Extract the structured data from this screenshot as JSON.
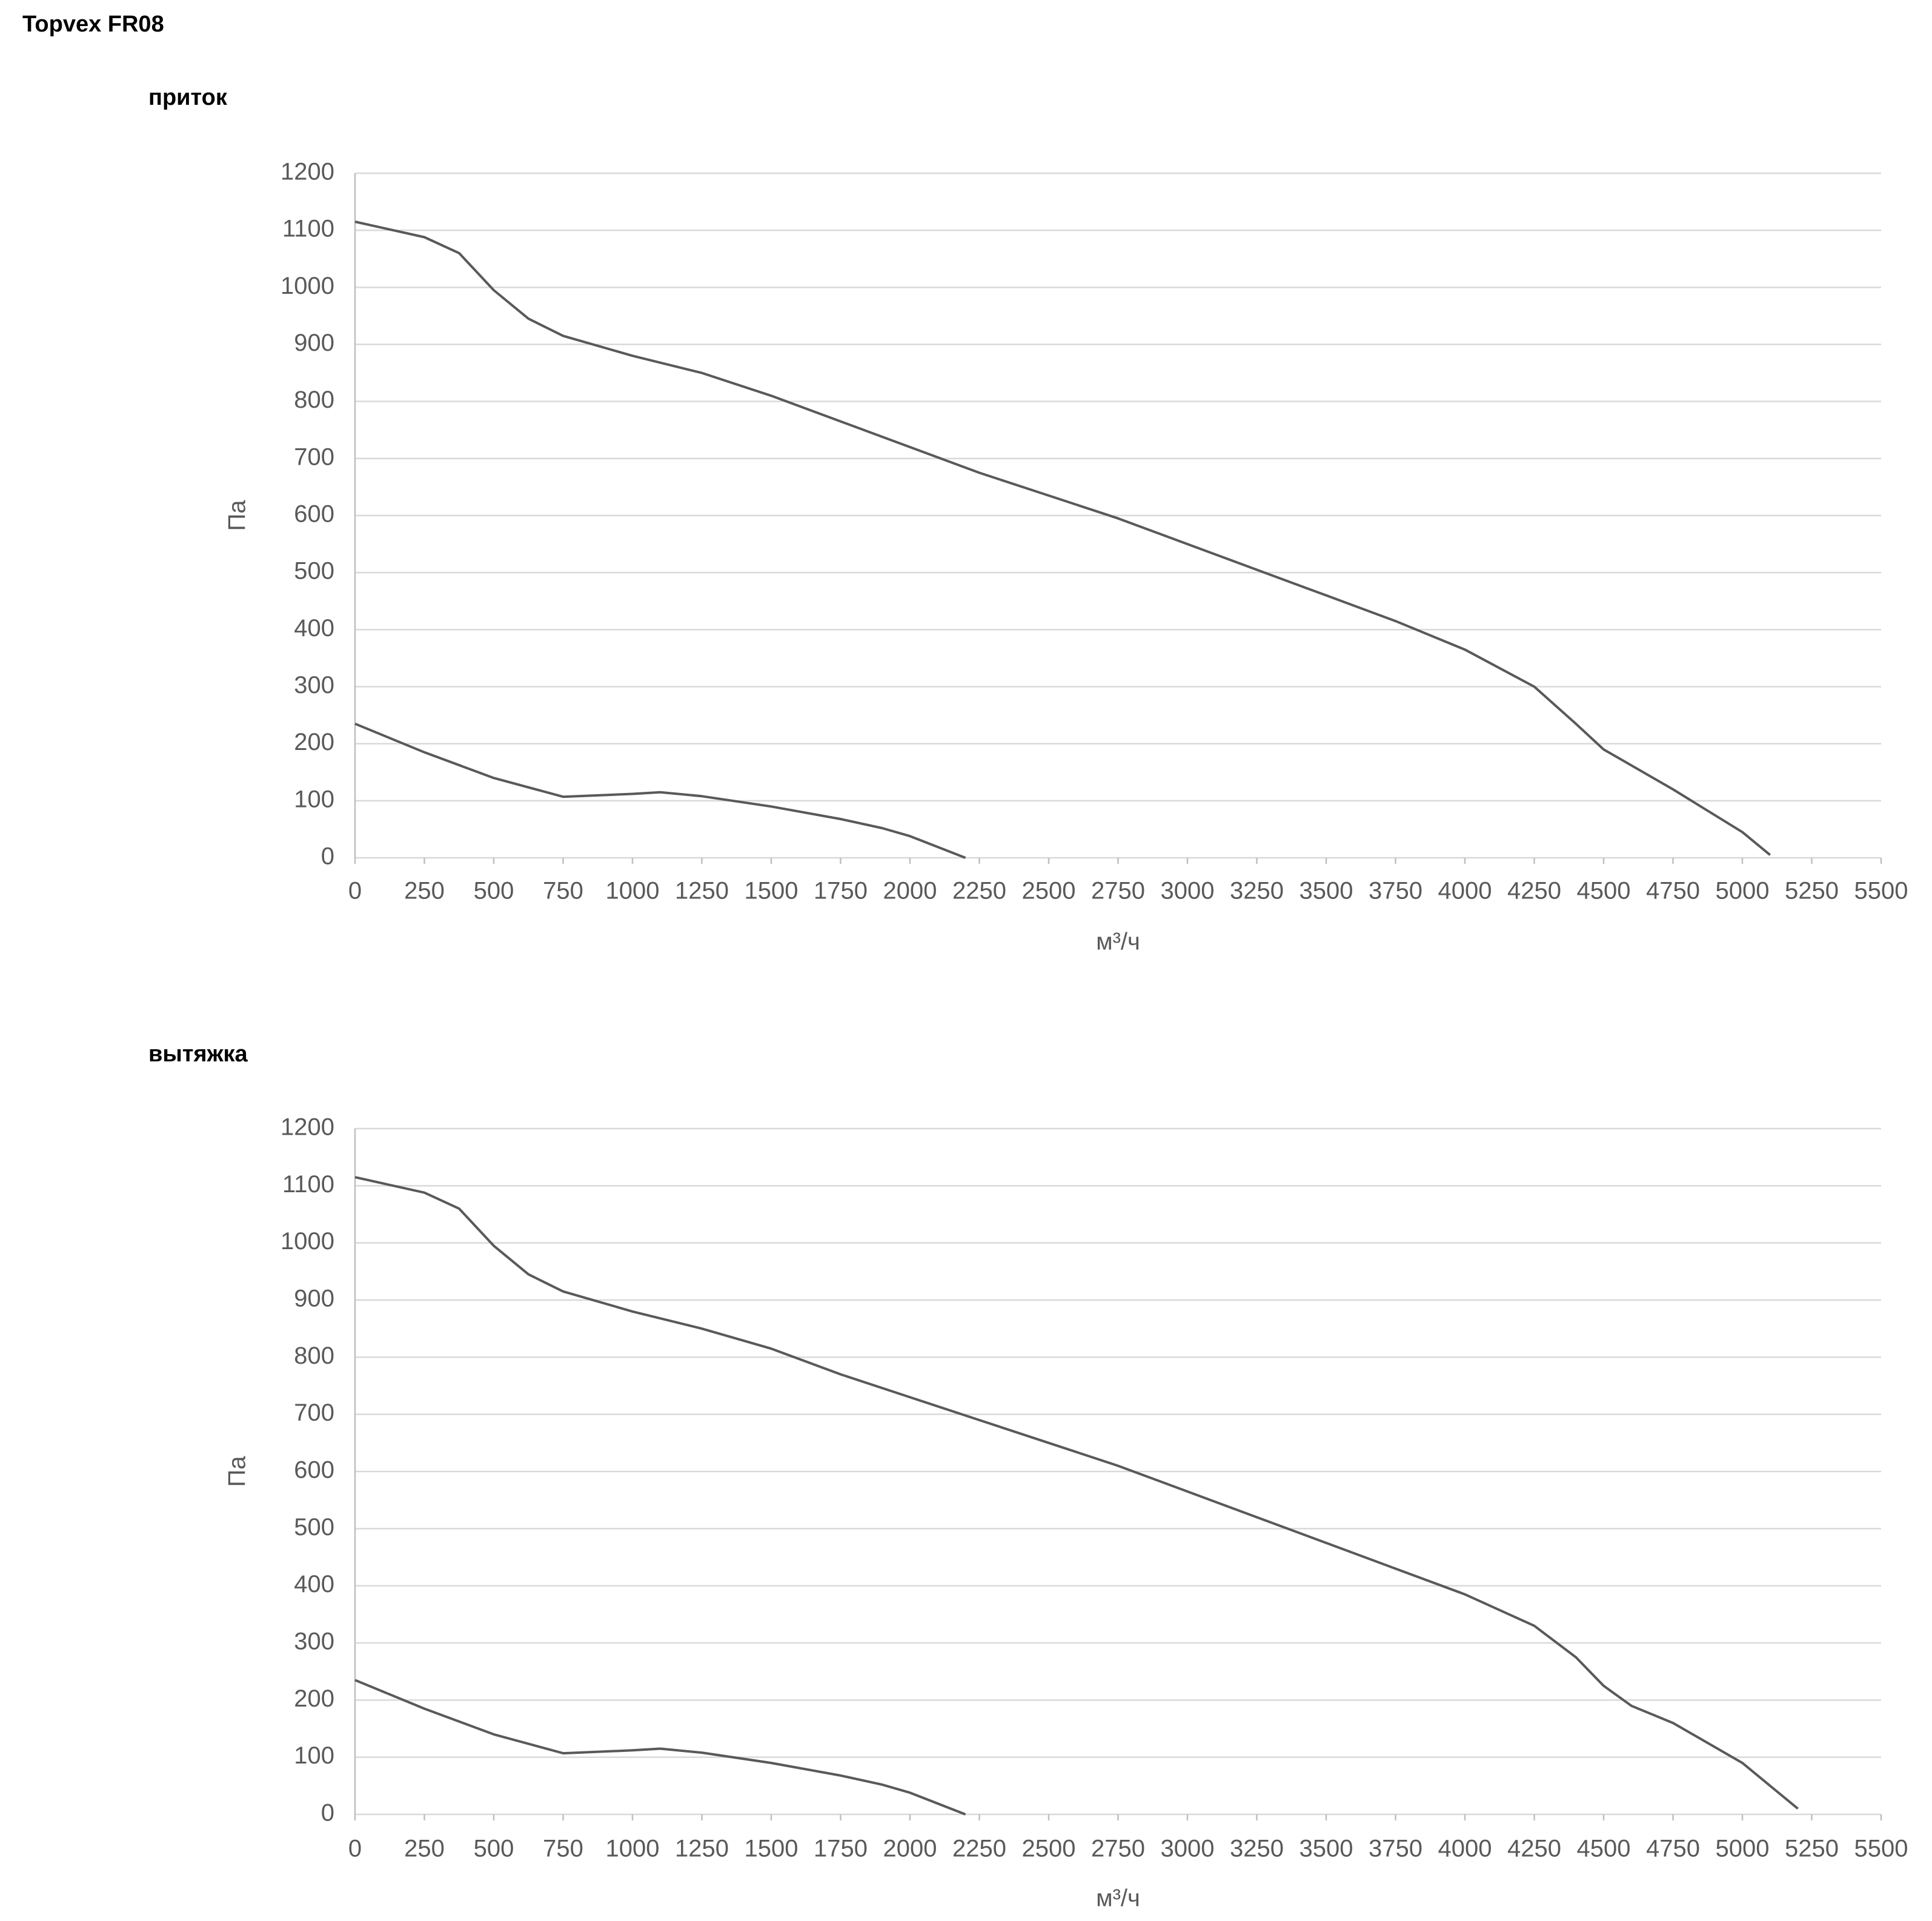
{
  "header": {
    "title": "Topvex FR08"
  },
  "chart_data": [
    {
      "type": "line",
      "title": "приток",
      "x_label": "м³/ч",
      "y_label": "Па",
      "xlim": [
        0,
        5500
      ],
      "ylim": [
        0,
        1200
      ],
      "grid": true,
      "xticks": [
        0,
        250,
        500,
        750,
        1000,
        1250,
        1500,
        1750,
        2000,
        2250,
        2500,
        2750,
        3000,
        3250,
        3500,
        3750,
        4000,
        4250,
        4500,
        4750,
        5000,
        5250,
        5500
      ],
      "yticks": [
        0,
        100,
        200,
        300,
        400,
        500,
        600,
        700,
        800,
        900,
        1000,
        1100,
        1200
      ],
      "series": [
        {
          "color": "#595959",
          "x": [
            0,
            250,
            375,
            500,
            625,
            750,
            1000,
            1250,
            1500,
            1750,
            2000,
            2250,
            2500,
            2750,
            3000,
            3250,
            3500,
            3750,
            4000,
            4250,
            4400,
            4500,
            4750,
            5000,
            5100
          ],
          "values": [
            1115,
            1088,
            1060,
            995,
            945,
            915,
            880,
            850,
            810,
            765,
            720,
            675,
            635,
            595,
            550,
            505,
            460,
            415,
            365,
            300,
            235,
            190,
            120,
            45,
            5
          ]
        },
        {
          "color": "#595959",
          "x": [
            0,
            250,
            500,
            750,
            1000,
            1100,
            1250,
            1500,
            1750,
            1900,
            2000,
            2200
          ],
          "values": [
            235,
            185,
            140,
            107,
            112,
            115,
            108,
            90,
            68,
            52,
            38,
            0
          ]
        }
      ]
    },
    {
      "type": "line",
      "title": "вытяжка",
      "x_label": "м³/ч",
      "y_label": "Па",
      "xlim": [
        0,
        5500
      ],
      "ylim": [
        0,
        1200
      ],
      "grid": true,
      "xticks": [
        0,
        250,
        500,
        750,
        1000,
        1250,
        1500,
        1750,
        2000,
        2250,
        2500,
        2750,
        3000,
        3250,
        3500,
        3750,
        4000,
        4250,
        4500,
        4750,
        5000,
        5250,
        5500
      ],
      "yticks": [
        0,
        100,
        200,
        300,
        400,
        500,
        600,
        700,
        800,
        900,
        1000,
        1100,
        1200
      ],
      "series": [
        {
          "color": "#595959",
          "x": [
            0,
            250,
            375,
            500,
            625,
            750,
            1000,
            1250,
            1500,
            1750,
            2000,
            2250,
            2500,
            2750,
            3000,
            3250,
            3500,
            3750,
            4000,
            4250,
            4400,
            4500,
            4600,
            4750,
            5000,
            5200
          ],
          "values": [
            1115,
            1088,
            1060,
            995,
            945,
            915,
            880,
            850,
            815,
            770,
            730,
            690,
            650,
            610,
            565,
            520,
            475,
            430,
            385,
            330,
            275,
            225,
            190,
            160,
            90,
            10
          ]
        },
        {
          "color": "#595959",
          "x": [
            0,
            250,
            500,
            750,
            1000,
            1100,
            1250,
            1500,
            1750,
            1900,
            2000,
            2200
          ],
          "values": [
            235,
            185,
            140,
            107,
            112,
            115,
            108,
            90,
            68,
            52,
            38,
            0
          ]
        }
      ]
    }
  ]
}
